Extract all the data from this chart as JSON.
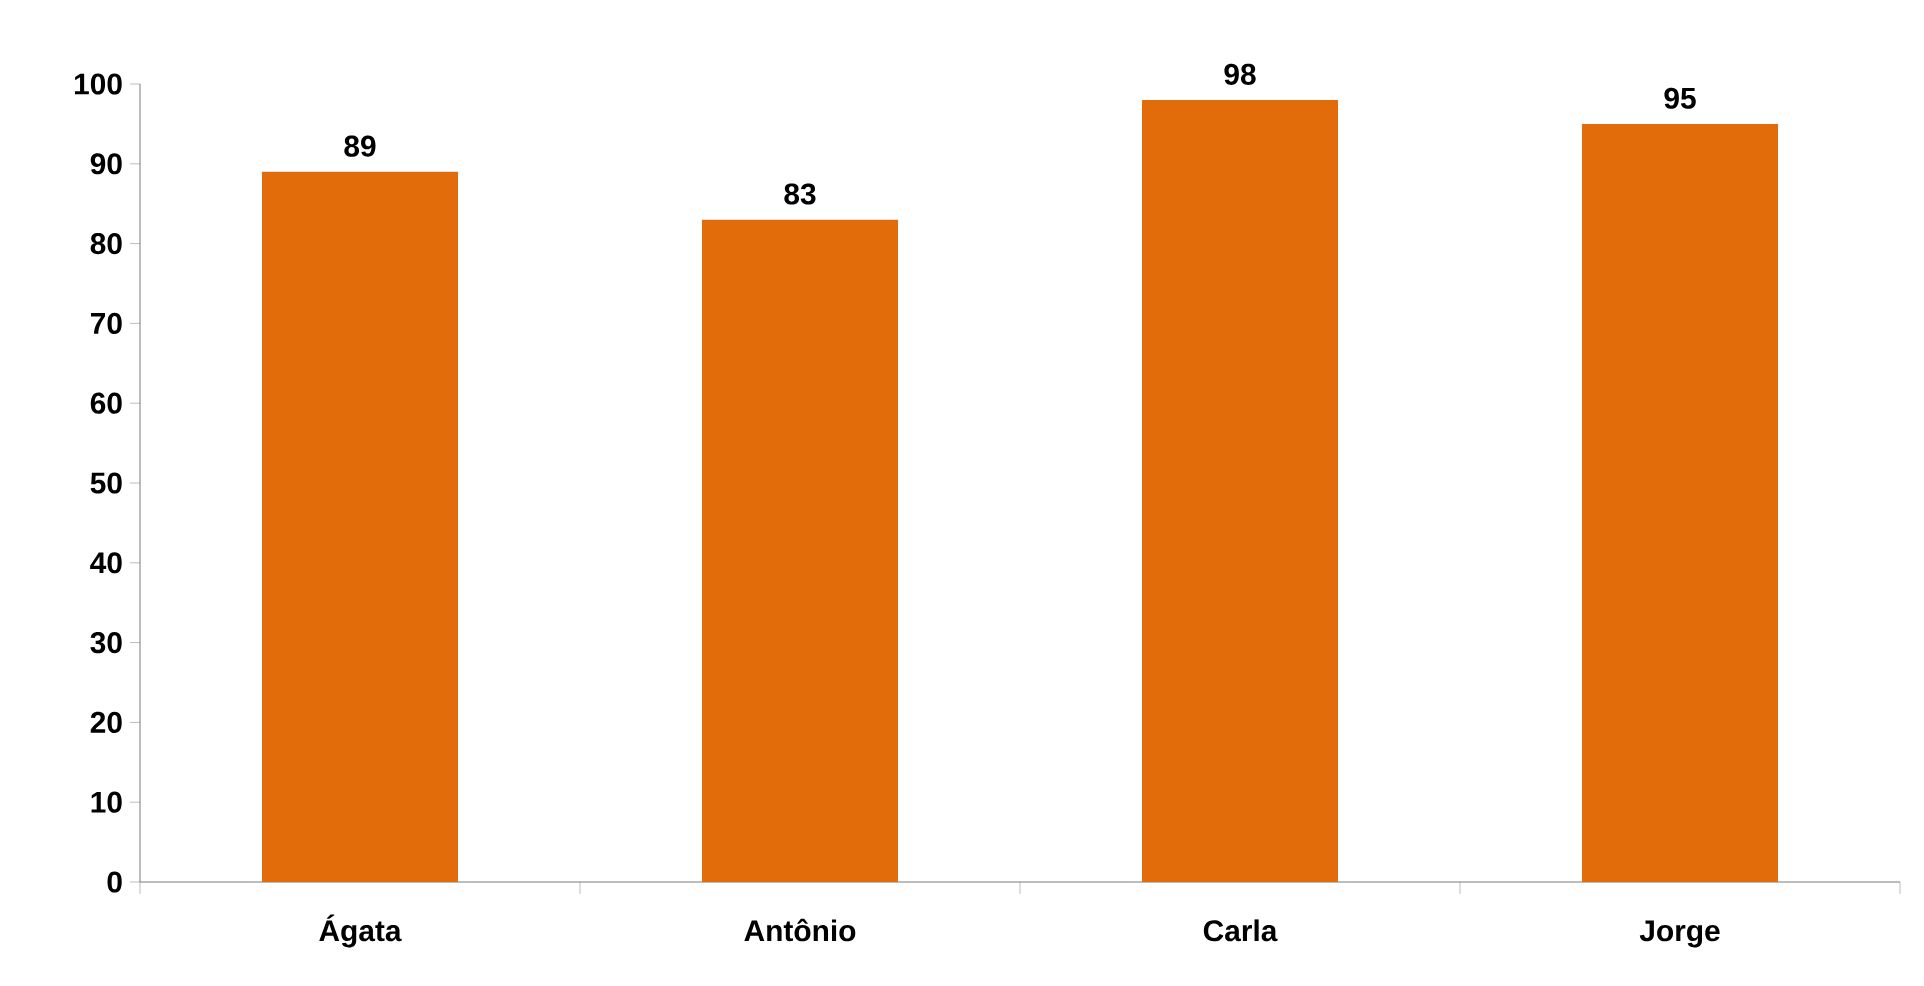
{
  "chart_data": {
    "type": "bar",
    "categories": [
      "Ágata",
      "Antônio",
      "Carla",
      "Jorge"
    ],
    "values": [
      89,
      83,
      98,
      95
    ],
    "color": "#e36c0a",
    "ylim": [
      0,
      100
    ],
    "yticks": [
      0,
      10,
      20,
      30,
      40,
      50,
      60,
      70,
      80,
      90,
      100
    ],
    "data_labels": true
  }
}
